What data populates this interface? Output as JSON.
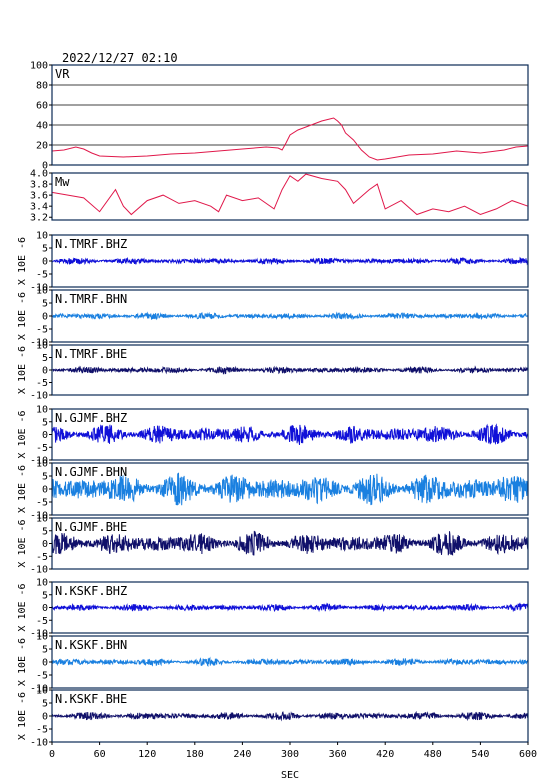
{
  "header": {
    "datetime": "2022/12/27 02:10"
  },
  "x_axis": {
    "label": "SEC",
    "ticks": [
      "0",
      "60",
      "120",
      "180",
      "240",
      "300",
      "360",
      "420",
      "480",
      "540",
      "600"
    ]
  },
  "waveform_ylabel": "X 10E -6",
  "colors": {
    "vr": "#e0184a",
    "mw": "#e0184a",
    "bhz": "#1010d8",
    "bhn": "#1a80e0",
    "bhe": "#10106a",
    "frame": "#0a2a55"
  },
  "chart_data": [
    {
      "type": "line",
      "title": "VR",
      "xlim": [
        0,
        600
      ],
      "ylim": [
        0,
        100
      ],
      "yticks": [
        "0",
        "20",
        "40",
        "60",
        "80",
        "100"
      ],
      "grid": true,
      "x": [
        0,
        15,
        30,
        40,
        50,
        60,
        90,
        120,
        150,
        180,
        210,
        240,
        270,
        285,
        290,
        295,
        300,
        310,
        320,
        330,
        340,
        350,
        355,
        360,
        365,
        370,
        380,
        390,
        400,
        410,
        420,
        450,
        480,
        510,
        540,
        570,
        585,
        600
      ],
      "values": [
        14,
        15,
        18,
        16,
        12,
        9,
        8,
        9,
        11,
        12,
        14,
        16,
        18,
        17,
        15,
        22,
        30,
        35,
        38,
        41,
        44,
        46,
        47,
        44,
        40,
        32,
        25,
        15,
        8,
        5,
        6,
        10,
        11,
        14,
        12,
        15,
        18,
        19
      ]
    },
    {
      "type": "line",
      "title": "Mw",
      "xlim": [
        0,
        600
      ],
      "ylim": [
        3.15,
        4.0
      ],
      "yticks": [
        "3.2",
        "3.4",
        "3.6",
        "3.8",
        "4.0"
      ],
      "grid": false,
      "x": [
        0,
        20,
        40,
        60,
        80,
        90,
        100,
        120,
        140,
        160,
        180,
        200,
        210,
        220,
        240,
        260,
        280,
        290,
        300,
        310,
        320,
        340,
        360,
        370,
        380,
        400,
        410,
        420,
        440,
        460,
        480,
        500,
        520,
        540,
        560,
        580,
        600
      ],
      "values": [
        3.65,
        3.6,
        3.55,
        3.3,
        3.7,
        3.4,
        3.25,
        3.5,
        3.6,
        3.45,
        3.5,
        3.4,
        3.3,
        3.6,
        3.5,
        3.55,
        3.35,
        3.7,
        3.95,
        3.85,
        3.98,
        3.9,
        3.85,
        3.7,
        3.45,
        3.7,
        3.8,
        3.35,
        3.5,
        3.25,
        3.35,
        3.3,
        3.4,
        3.25,
        3.35,
        3.5,
        3.4
      ]
    },
    {
      "type": "line",
      "title": "N.TMRF.BHZ",
      "xlim": [
        0,
        600
      ],
      "ylim": [
        -10,
        10
      ],
      "yticks": [
        "-10",
        "-5",
        "0",
        "5",
        "10"
      ],
      "amplitude": 0.8
    },
    {
      "type": "line",
      "title": "N.TMRF.BHN",
      "xlim": [
        0,
        600
      ],
      "ylim": [
        -10,
        10
      ],
      "yticks": [
        "-10",
        "-5",
        "0",
        "5",
        "10"
      ],
      "amplitude": 0.8
    },
    {
      "type": "line",
      "title": "N.TMRF.BHE",
      "xlim": [
        0,
        600
      ],
      "ylim": [
        -10,
        10
      ],
      "yticks": [
        "-10",
        "-5",
        "0",
        "5",
        "10"
      ],
      "amplitude": 0.9
    },
    {
      "type": "line",
      "title": "N.GJMF.BHZ",
      "xlim": [
        0,
        600
      ],
      "ylim": [
        -10,
        10
      ],
      "yticks": [
        "-10",
        "-5",
        "0",
        "5",
        "10"
      ],
      "amplitude": 2.5
    },
    {
      "type": "line",
      "title": "N.GJMF.BHN",
      "xlim": [
        0,
        600
      ],
      "ylim": [
        -10,
        10
      ],
      "yticks": [
        "-10",
        "-5",
        "0",
        "5",
        "10"
      ],
      "amplitude": 4.0
    },
    {
      "type": "line",
      "title": "N.GJMF.BHE",
      "xlim": [
        0,
        600
      ],
      "ylim": [
        -10,
        10
      ],
      "yticks": [
        "-10",
        "-5",
        "0",
        "5",
        "10"
      ],
      "amplitude": 3.0
    },
    {
      "type": "line",
      "title": "N.KSKF.BHZ",
      "xlim": [
        0,
        600
      ],
      "ylim": [
        -10,
        10
      ],
      "yticks": [
        "-10",
        "-5",
        "0",
        "5",
        "10"
      ],
      "amplitude": 0.9
    },
    {
      "type": "line",
      "title": "N.KSKF.BHN",
      "xlim": [
        0,
        600
      ],
      "ylim": [
        -10,
        10
      ],
      "yticks": [
        "-10",
        "-5",
        "0",
        "5",
        "10"
      ],
      "amplitude": 0.9
    },
    {
      "type": "line",
      "title": "N.KSKF.BHE",
      "xlim": [
        0,
        600
      ],
      "ylim": [
        -10,
        10
      ],
      "yticks": [
        "-10",
        "-5",
        "0",
        "5",
        "10"
      ],
      "amplitude": 1.0
    }
  ]
}
